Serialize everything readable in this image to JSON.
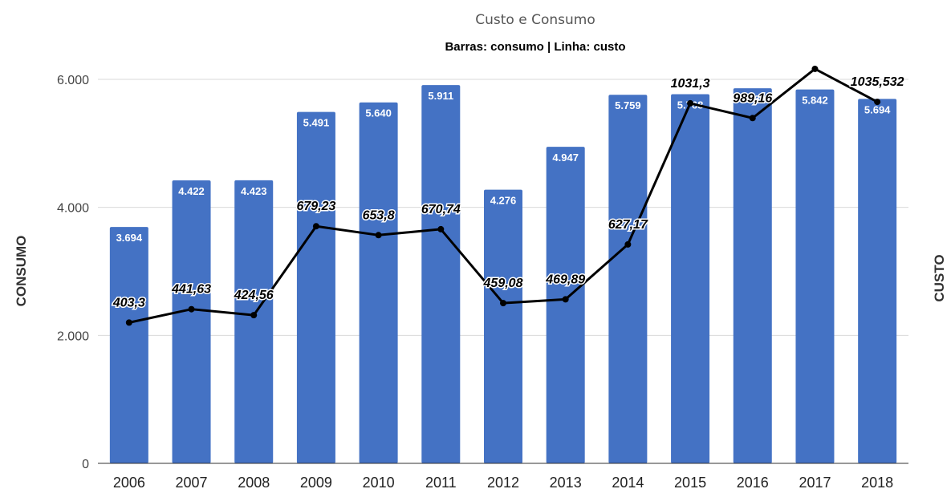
{
  "chart_data": {
    "type": "bar",
    "title": "Custo e Consumo",
    "subtitle": "Barras: consumo | Linha: custo",
    "ylabel": "CONSUMO",
    "y2label": "CUSTO",
    "categories": [
      "2006",
      "2007",
      "2008",
      "2009",
      "2010",
      "2011",
      "2012",
      "2013",
      "2014",
      "2015",
      "2016",
      "2017",
      "2018"
    ],
    "ylim": [
      0,
      6000
    ],
    "yticks": [
      0,
      2000,
      4000,
      6000
    ],
    "ytick_labels": [
      "0",
      "2.000",
      "4.000",
      "6.000"
    ],
    "y2lim": [
      0,
      1100
    ],
    "grid": true,
    "series": [
      {
        "name": "consumo",
        "type": "bar",
        "color": "#4472c4",
        "values": [
          3694,
          4422,
          4423,
          5491,
          5640,
          5911,
          4276,
          4947,
          5759,
          5768,
          5860,
          5842,
          5694
        ],
        "labels": [
          "3.694",
          "4.422",
          "4.423",
          "5.491",
          "5.640",
          "5.911",
          "4.276",
          "4.947",
          "5.759",
          "5.768",
          "5.860",
          "5.842",
          "5.694"
        ]
      },
      {
        "name": "custo",
        "type": "line",
        "axis": "right",
        "color": "#000000",
        "values": [
          403.3,
          441.63,
          424.56,
          679.23,
          653.8,
          670.74,
          459.08,
          469.89,
          627.17,
          1031.3,
          989.16,
          1130,
          1035.532
        ],
        "labels": [
          "403,3",
          "441,63",
          "424,56",
          "679,23",
          "653,8",
          "670,74",
          "459,08",
          "469,89",
          "627,17",
          "1031,3",
          "989,16",
          "",
          "1035,532"
        ]
      }
    ]
  }
}
